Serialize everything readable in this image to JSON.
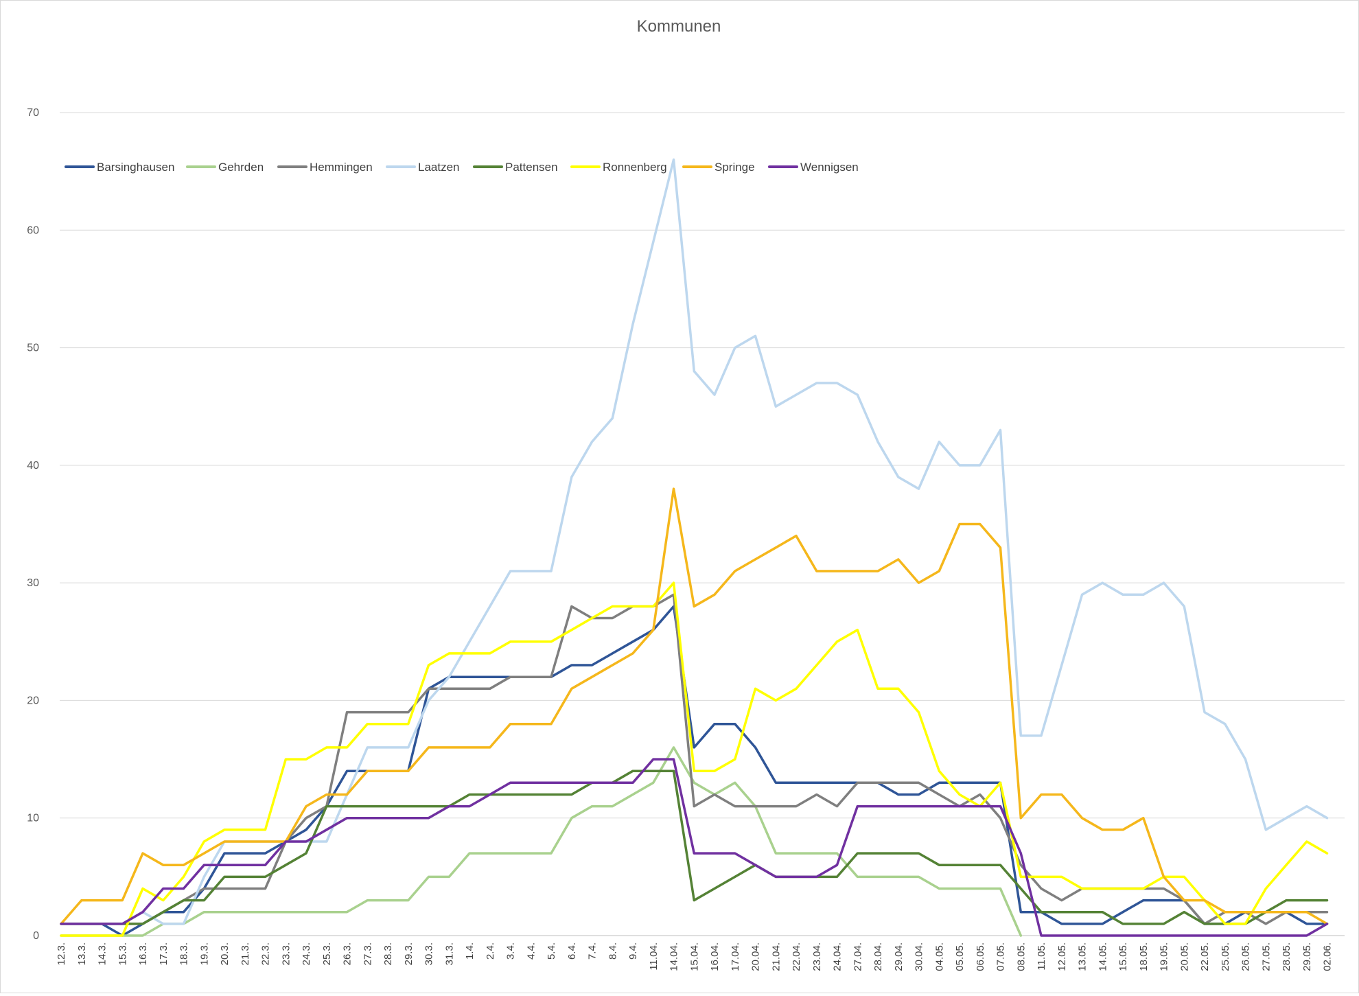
{
  "chart_data": {
    "type": "line",
    "title": "Kommunen",
    "xlabel": "",
    "ylabel": "",
    "ylim": [
      0,
      70
    ],
    "yticks": [
      0,
      10,
      20,
      30,
      40,
      50,
      60,
      70
    ],
    "grid": true,
    "legend_position": "top-left",
    "categories": [
      "12.3.",
      "13.3.",
      "14.3.",
      "15.3.",
      "16.3.",
      "17.3.",
      "18.3.",
      "19.3.",
      "20.3.",
      "21.3.",
      "22.3.",
      "23.3.",
      "24.3.",
      "25.3.",
      "26.3.",
      "27.3.",
      "28.3.",
      "29.3.",
      "30.3.",
      "31.3.",
      "1.4.",
      "2.4.",
      "3.4.",
      "4.4.",
      "5.4.",
      "6.4.",
      "7.4.",
      "8.4.",
      "9.4.",
      "11.04.",
      "14.04.",
      "15.04.",
      "16.04.",
      "17.04.",
      "20.04.",
      "21.04.",
      "22.04.",
      "23.04.",
      "24.04.",
      "27.04.",
      "28.04.",
      "29.04.",
      "30.04.",
      "04.05.",
      "05.05.",
      "06.05.",
      "07.05.",
      "08.05.",
      "11.05.",
      "12.05.",
      "13.05.",
      "14.05.",
      "15.05.",
      "18.05.",
      "19.05.",
      "20.05.",
      "22.05.",
      "25.05.",
      "26.05.",
      "27.05.",
      "28.05.",
      "29.05.",
      "02.06."
    ],
    "series": [
      {
        "name": "Barsinghausen",
        "color": "#2f5597",
        "values": [
          1,
          1,
          1,
          0,
          1,
          2,
          2,
          4,
          7,
          7,
          7,
          8,
          9,
          11,
          14,
          14,
          14,
          14,
          21,
          22,
          22,
          22,
          22,
          22,
          22,
          23,
          23,
          24,
          25,
          26,
          28,
          16,
          18,
          18,
          16,
          13,
          13,
          13,
          13,
          13,
          13,
          12,
          12,
          13,
          13,
          13,
          13,
          2,
          2,
          1,
          1,
          1,
          2,
          3,
          3,
          3,
          1,
          1,
          2,
          2,
          2,
          1,
          1
        ]
      },
      {
        "name": "Gehrden",
        "color": "#a9d18e",
        "values": [
          0,
          0,
          0,
          0,
          0,
          1,
          1,
          2,
          2,
          2,
          2,
          2,
          2,
          2,
          2,
          3,
          3,
          3,
          5,
          5,
          7,
          7,
          7,
          7,
          7,
          10,
          11,
          11,
          12,
          13,
          16,
          13,
          12,
          13,
          11,
          7,
          7,
          7,
          7,
          5,
          5,
          5,
          5,
          4,
          4,
          4,
          4,
          0,
          null,
          null,
          null,
          null,
          null,
          null,
          null,
          null,
          null,
          null,
          null,
          null,
          null,
          null,
          null
        ]
      },
      {
        "name": "Hemmingen",
        "color": "#7f7f7f",
        "values": [
          1,
          1,
          1,
          1,
          1,
          2,
          3,
          4,
          4,
          4,
          4,
          8,
          10,
          11,
          19,
          19,
          19,
          19,
          21,
          21,
          21,
          21,
          22,
          22,
          22,
          28,
          27,
          27,
          28,
          28,
          29,
          11,
          12,
          11,
          11,
          11,
          11,
          12,
          11,
          13,
          13,
          13,
          13,
          12,
          11,
          12,
          10,
          6,
          4,
          3,
          4,
          4,
          4,
          4,
          4,
          3,
          1,
          2,
          2,
          1,
          2,
          2,
          2
        ]
      },
      {
        "name": "Laatzen",
        "color": "#bdd7ee",
        "values": [
          1,
          1,
          1,
          1,
          2,
          1,
          1,
          5,
          8,
          8,
          8,
          8,
          8,
          8,
          12,
          16,
          16,
          16,
          20,
          22,
          25,
          28,
          31,
          31,
          31,
          39,
          42,
          44,
          52,
          59,
          66,
          48,
          46,
          50,
          51,
          45,
          46,
          47,
          47,
          46,
          42,
          39,
          38,
          42,
          40,
          40,
          43,
          17,
          17,
          23,
          29,
          30,
          29,
          29,
          30,
          28,
          19,
          18,
          15,
          9,
          10,
          11,
          10
        ]
      },
      {
        "name": "Pattensen",
        "color": "#548235",
        "values": [
          1,
          1,
          1,
          1,
          1,
          2,
          3,
          3,
          5,
          5,
          5,
          6,
          7,
          11,
          11,
          11,
          11,
          11,
          11,
          11,
          12,
          12,
          12,
          12,
          12,
          12,
          13,
          13,
          14,
          14,
          14,
          3,
          4,
          5,
          6,
          5,
          5,
          5,
          5,
          7,
          7,
          7,
          7,
          6,
          6,
          6,
          6,
          4,
          2,
          2,
          2,
          2,
          1,
          1,
          1,
          2,
          1,
          1,
          1,
          2,
          3,
          3,
          3
        ]
      },
      {
        "name": "Ronnenberg",
        "color": "#ffff00",
        "values": [
          0,
          0,
          0,
          0,
          4,
          3,
          5,
          8,
          9,
          9,
          9,
          15,
          15,
          16,
          16,
          18,
          18,
          18,
          23,
          24,
          24,
          24,
          25,
          25,
          25,
          26,
          27,
          28,
          28,
          28,
          30,
          14,
          14,
          15,
          21,
          20,
          21,
          23,
          25,
          26,
          21,
          21,
          19,
          14,
          12,
          11,
          13,
          5,
          5,
          5,
          4,
          4,
          4,
          4,
          5,
          5,
          3,
          1,
          1,
          4,
          6,
          8,
          7
        ]
      },
      {
        "name": "Springe",
        "color": "#f5b71b",
        "values": [
          1,
          3,
          3,
          3,
          7,
          6,
          6,
          7,
          8,
          8,
          8,
          8,
          11,
          12,
          12,
          14,
          14,
          14,
          16,
          16,
          16,
          16,
          18,
          18,
          18,
          21,
          22,
          23,
          24,
          26,
          38,
          28,
          29,
          31,
          32,
          33,
          34,
          31,
          31,
          31,
          31,
          32,
          30,
          31,
          35,
          35,
          33,
          10,
          12,
          12,
          10,
          9,
          9,
          10,
          5,
          3,
          3,
          2,
          2,
          2,
          2,
          2,
          1
        ]
      },
      {
        "name": "Wennigsen",
        "color": "#7030a0",
        "values": [
          1,
          1,
          1,
          1,
          2,
          4,
          4,
          6,
          6,
          6,
          6,
          8,
          8,
          9,
          10,
          10,
          10,
          10,
          10,
          11,
          11,
          12,
          13,
          13,
          13,
          13,
          13,
          13,
          13,
          15,
          15,
          7,
          7,
          7,
          6,
          5,
          5,
          5,
          6,
          11,
          11,
          11,
          11,
          11,
          11,
          11,
          11,
          7,
          0,
          0,
          0,
          0,
          0,
          0,
          0,
          0,
          0,
          0,
          0,
          0,
          0,
          0,
          1
        ]
      }
    ]
  }
}
